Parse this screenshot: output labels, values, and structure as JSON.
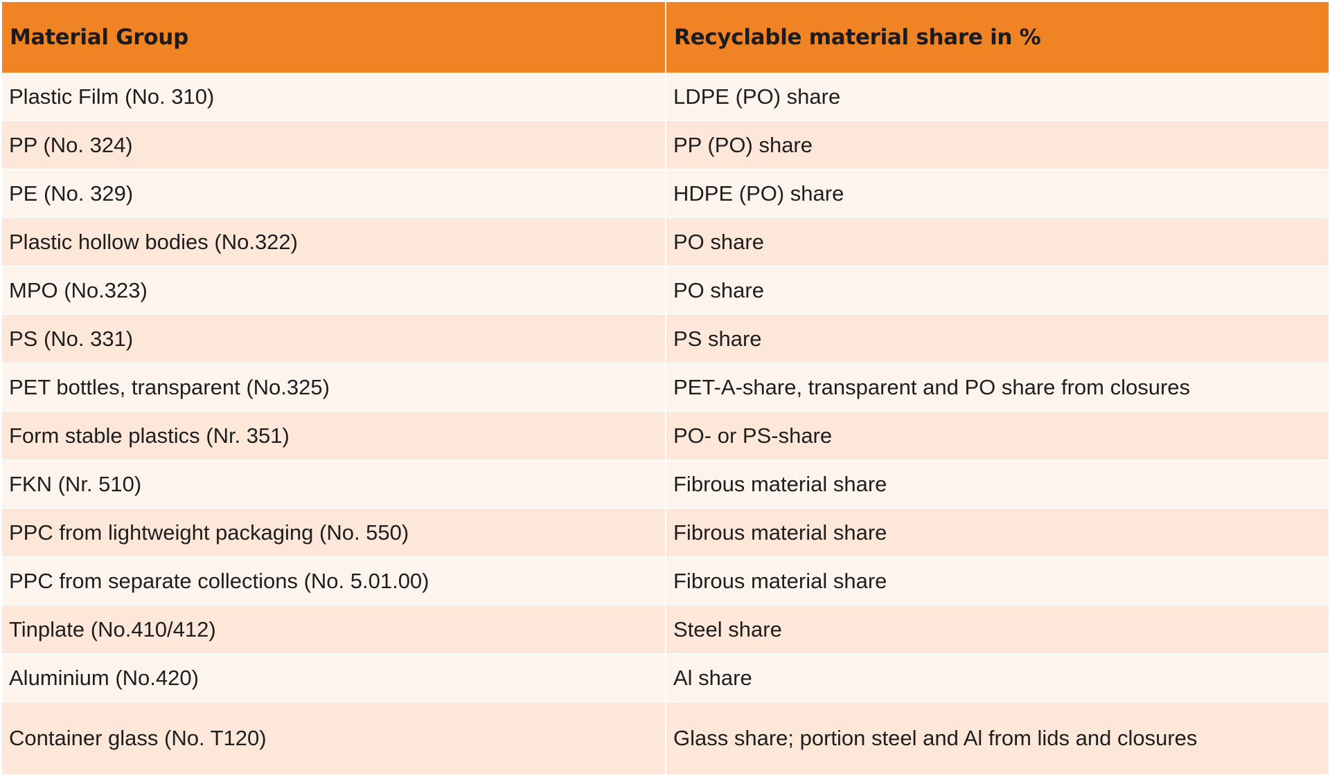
{
  "header": {
    "col1": "Material Group",
    "col2": "Recyclable material share in %"
  },
  "rows": [
    {
      "group": "Plastic Film (No. 310)",
      "share": "LDPE (PO) share"
    },
    {
      "group": "PP (No. 324)",
      "share": "PP (PO) share"
    },
    {
      "group": "PE (No. 329)",
      "share": "HDPE (PO) share"
    },
    {
      "group": "Plastic hollow bodies (No.322)",
      "share": "PO share"
    },
    {
      "group": "MPO (No.323)",
      "share": "PO share"
    },
    {
      "group": "PS (No. 331)",
      "share": "PS share"
    },
    {
      "group": "PET bottles, transparent (No.325)",
      "share": "PET-A-share, transparent and PO share from closures"
    },
    {
      "group": "Form stable plastics (Nr. 351)",
      "share": "PO- or PS-share"
    },
    {
      "group": "FKN (Nr. 510)",
      "share": "Fibrous material share"
    },
    {
      "group": "PPC from lightweight packaging (No. 550)",
      "share": "Fibrous material share"
    },
    {
      "group": "PPC from separate collections (No. 5.01.00)",
      "share": "Fibrous material share"
    },
    {
      "group": "Tinplate (No.410/412)",
      "share": "Steel share"
    },
    {
      "group": "Aluminium (No.420)",
      "share": "Al share"
    },
    {
      "group": "Container glass (No. T120)",
      "share": "Glass share; portion steel and Al from lids and closures"
    }
  ],
  "colors": {
    "header": "#f08424",
    "row_light": "#fdf4ee",
    "row_dark": "#fce7d8"
  }
}
